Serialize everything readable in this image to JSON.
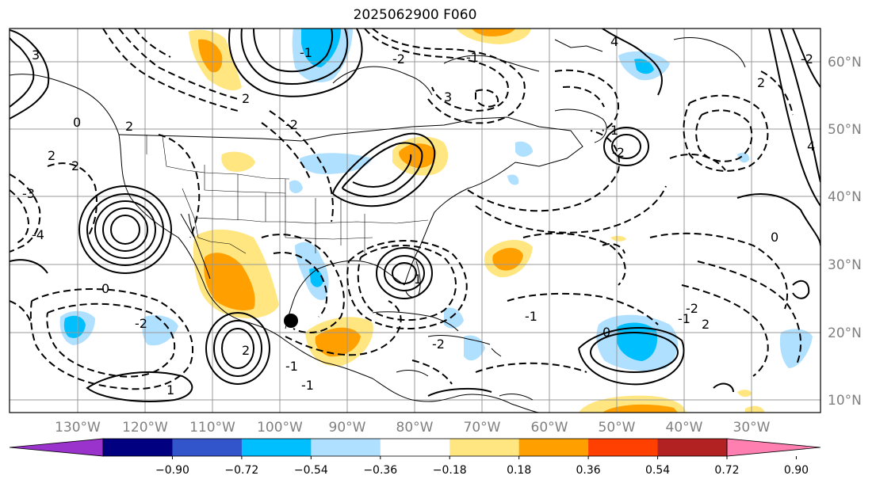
{
  "title": "2025062900 F060",
  "lat_labels": [
    "60°N",
    "50°N",
    "40°N",
    "30°N",
    "20°N",
    "10°N"
  ],
  "lon_labels": [
    "130°W",
    "120°W",
    "110°W",
    "100°W",
    "90°W",
    "80°W",
    "70°W",
    "60°W",
    "50°W",
    "40°W",
    "30°W"
  ],
  "colorbar": {
    "ticks": [
      "−0.90",
      "−0.72",
      "−0.54",
      "−0.36",
      "−0.18",
      "0.18",
      "0.36",
      "0.54",
      "0.72",
      "0.90"
    ],
    "colors": [
      "#9933cc",
      "#000080",
      "#3355cc",
      "#00bfff",
      "#b0e0ff",
      "#ffffff",
      "#ffe680",
      "#ffa000",
      "#ff4000",
      "#b22222",
      "#ff80b0"
    ]
  },
  "contour_labels": [
    "3",
    "0",
    "2",
    "-3",
    "2",
    "-2",
    "4",
    "3",
    "2",
    "2",
    "-2",
    "4",
    "-2",
    "-4",
    "2",
    "1",
    "-2",
    "-2",
    "0",
    "-2",
    "-1",
    "1",
    "-1",
    "2",
    "0",
    "-1",
    "2",
    "-1",
    "0",
    "-1",
    "-2",
    "1",
    "-1"
  ],
  "marker": "storm-center"
}
